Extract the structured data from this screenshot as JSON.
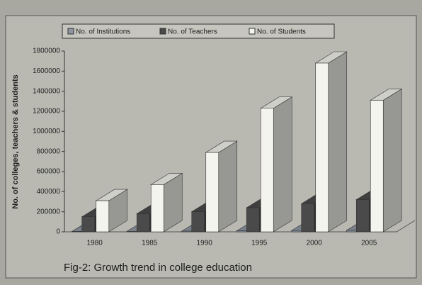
{
  "chart_data": {
    "type": "bar3d",
    "title": "Fig-2: Growth trend in college education",
    "y_label": "No. of colleges, teachers & students",
    "categories": [
      "1980",
      "1985",
      "1990",
      "1995",
      "2000",
      "2005"
    ],
    "series": [
      {
        "name": "No. of Institutions",
        "color": "#8f96a3",
        "values": [
          4000,
          5000,
          7000,
          9000,
          12000,
          14000
        ]
      },
      {
        "name": "No. of Teachers",
        "color": "#4a4a4a",
        "values": [
          150000,
          180000,
          200000,
          240000,
          280000,
          320000
        ]
      },
      {
        "name": "No. of Students",
        "color": "#f4f4ee",
        "values": [
          310000,
          470000,
          790000,
          1230000,
          1680000,
          1310000
        ]
      }
    ],
    "ylim": [
      0,
      1800000
    ],
    "yticks": [
      0,
      200000,
      400000,
      600000,
      800000,
      1000000,
      1200000,
      1400000,
      1600000,
      1800000
    ],
    "legend": "top"
  }
}
